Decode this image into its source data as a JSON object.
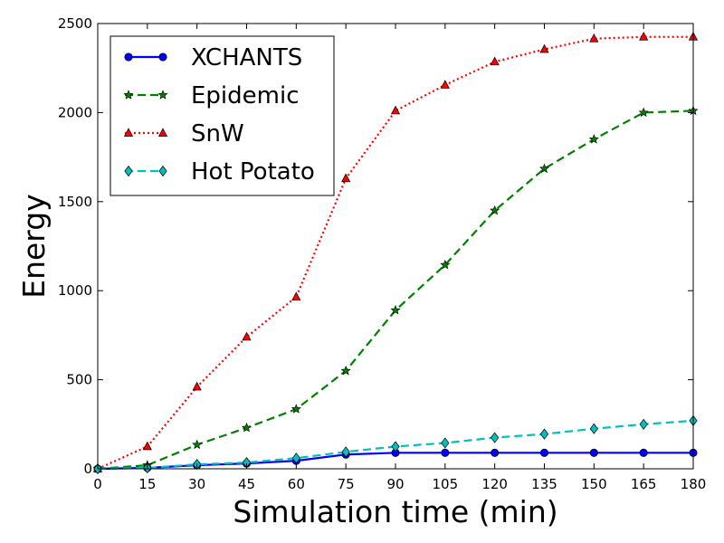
{
  "chart_data": {
    "type": "line",
    "title": "",
    "xlabel": "Simulation time (min)",
    "ylabel": "Energy",
    "xlim": [
      0,
      180
    ],
    "ylim": [
      0,
      2500
    ],
    "x": [
      0,
      15,
      30,
      45,
      60,
      75,
      90,
      105,
      120,
      135,
      150,
      165,
      180
    ],
    "xticks": [
      0,
      15,
      30,
      45,
      60,
      75,
      90,
      105,
      120,
      135,
      150,
      165,
      180
    ],
    "yticks": [
      0,
      500,
      1000,
      1500,
      2000,
      2500
    ],
    "grid": false,
    "legend_position": "top-left",
    "series": [
      {
        "name": "XCHANTS",
        "color": "#0000ff",
        "marker": "circle",
        "linestyle": "solid",
        "values": [
          0,
          5,
          20,
          30,
          45,
          80,
          90,
          90,
          90,
          90,
          90,
          90,
          90
        ]
      },
      {
        "name": "Epidemic",
        "color": "#007f00",
        "marker": "star",
        "linestyle": "dashed",
        "values": [
          0,
          20,
          135,
          230,
          335,
          550,
          890,
          1145,
          1450,
          1685,
          1850,
          2000,
          2010
        ]
      },
      {
        "name": "SnW",
        "color": "#ff0000",
        "marker": "triangle",
        "linestyle": "dotted",
        "values": [
          0,
          125,
          460,
          740,
          965,
          1630,
          2010,
          2155,
          2285,
          2355,
          2415,
          2425,
          2425
        ]
      },
      {
        "name": "Hot Potato",
        "color": "#00bfbf",
        "marker": "diamond",
        "linestyle": "dashed",
        "values": [
          0,
          5,
          25,
          35,
          60,
          95,
          125,
          145,
          175,
          195,
          225,
          250,
          270
        ]
      }
    ]
  }
}
